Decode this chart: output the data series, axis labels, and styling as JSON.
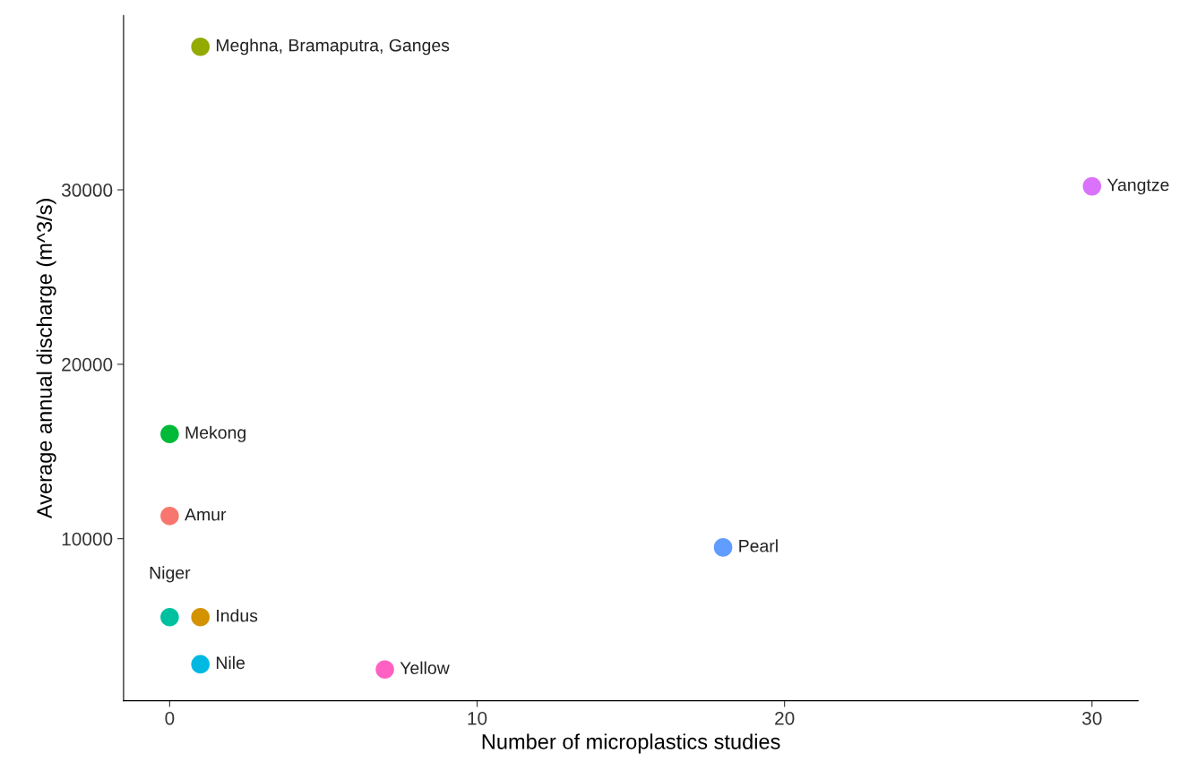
{
  "chart_data": {
    "type": "scatter",
    "xlabel": "Number of microplastics studies",
    "ylabel": "Average annual discharge (m^3/s)",
    "xlim": [
      -1.5,
      31.5
    ],
    "xticks": [
      0,
      10,
      20,
      30
    ],
    "ylim": [
      712,
      40000
    ],
    "yticks": [
      10000,
      20000,
      30000
    ],
    "grid": false,
    "legend": false,
    "marker": "circle",
    "series": [
      {
        "name": "Amur",
        "color": "#f8766d",
        "x": [
          0
        ],
        "values": [
          11300
        ]
      },
      {
        "name": "Indus",
        "color": "#d39200",
        "x": [
          1
        ],
        "values": [
          5500
        ]
      },
      {
        "name": "Meghna, Bramaputra, Ganges",
        "color": "#93aa00",
        "x": [
          1
        ],
        "values": [
          38200
        ]
      },
      {
        "name": "Mekong",
        "color": "#00ba38",
        "x": [
          0
        ],
        "values": [
          16000
        ]
      },
      {
        "name": "Niger",
        "color": "#00c19f",
        "x": [
          0
        ],
        "values": [
          5500
        ]
      },
      {
        "name": "Nile",
        "color": "#00b9e3",
        "x": [
          1
        ],
        "values": [
          2800
        ]
      },
      {
        "name": "Pearl",
        "color": "#619cff",
        "x": [
          18
        ],
        "values": [
          9500
        ]
      },
      {
        "name": "Yangtze",
        "color": "#db72fb",
        "x": [
          30
        ],
        "values": [
          30200
        ]
      },
      {
        "name": "Yellow",
        "color": "#ff61c3",
        "x": [
          7
        ],
        "values": [
          2500
        ]
      }
    ]
  }
}
